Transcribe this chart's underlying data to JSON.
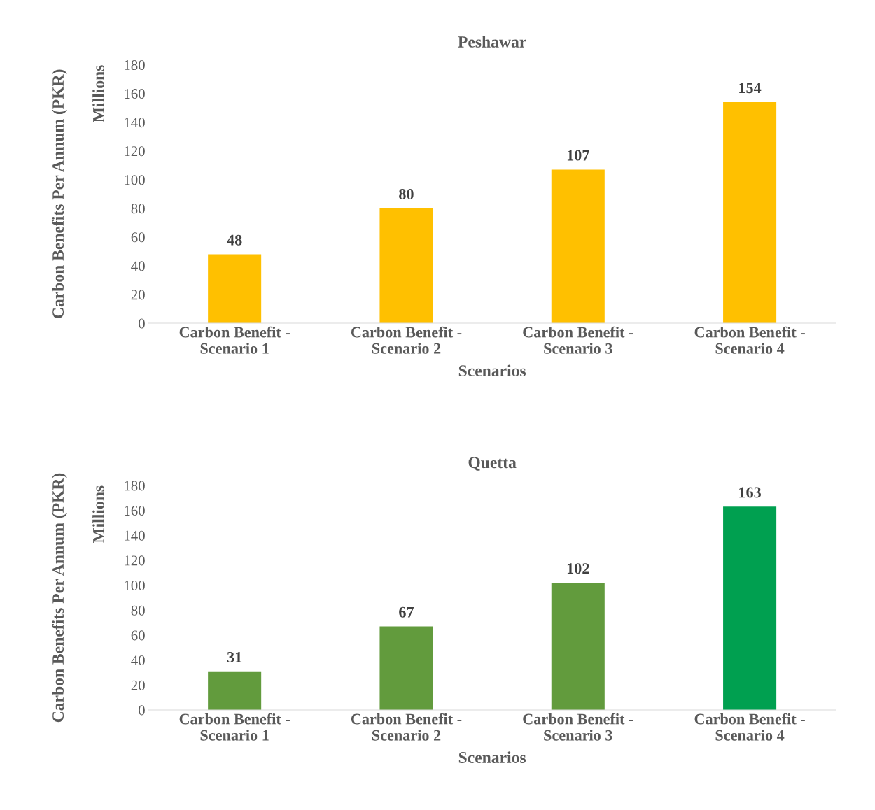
{
  "chart_data": [
    {
      "type": "bar",
      "title": "Peshawar",
      "xlabel": "Scenarios",
      "ylabel": "Carbon Benefits Per Annum (PKR)",
      "annotations": [
        "Millions"
      ],
      "categories": [
        "Carbon Benefit -\nScenario 1",
        "Carbon Benefit -\nScenario 2",
        "Carbon Benefit -\nScenario 3",
        "Carbon Benefit -\nScenario 4"
      ],
      "values": [
        48,
        80,
        107,
        154
      ],
      "colors": [
        "#ffc000",
        "#ffc000",
        "#ffc000",
        "#ffc000"
      ],
      "ylim": [
        0,
        180
      ],
      "yticks": [
        0,
        20,
        40,
        60,
        80,
        100,
        120,
        140,
        160,
        180
      ],
      "data_labels": true,
      "grid": false
    },
    {
      "type": "bar",
      "title": "Quetta",
      "xlabel": "Scenarios",
      "ylabel": "Carbon Benefits Per Annum (PKR)",
      "annotations": [
        "Millions"
      ],
      "categories": [
        "Carbon Benefit -\nScenario 1",
        "Carbon Benefit -\nScenario 2",
        "Carbon Benefit -\nScenario 3",
        "Carbon Benefit -\nScenario 4"
      ],
      "values": [
        31,
        67,
        102,
        163
      ],
      "colors": [
        "#629b3d",
        "#629b3d",
        "#629b3d",
        "#00a050"
      ],
      "ylim": [
        0,
        180
      ],
      "yticks": [
        0,
        20,
        40,
        60,
        80,
        100,
        120,
        140,
        160,
        180
      ],
      "data_labels": true,
      "grid": false
    }
  ]
}
